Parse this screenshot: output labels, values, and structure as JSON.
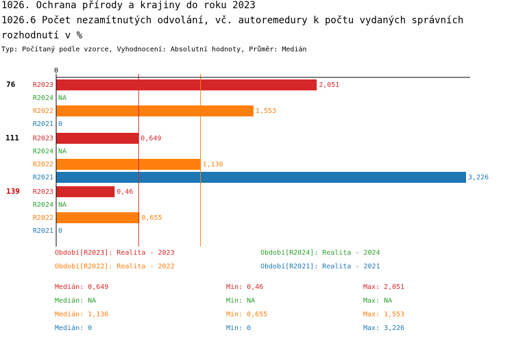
{
  "header": {
    "title_line1": "1026. Ochrana přírody a krajiny do roku 2023",
    "title_line2": "1026.6 Počet nezamítnutých odvolání, vč. autoremedury k počtu vydaných správních",
    "title_line3": "rozhodnutí v %",
    "subtitle": "Typ: Počítaný podle vzorce, Vyhodnocení: Absolutní hodnoty, Průměr: Medián"
  },
  "colors": {
    "R2023": "#d62728",
    "R2024": "#2ca02c",
    "R2022": "#ff7f0e",
    "R2021": "#1f77b4",
    "group_label_default": "#000000",
    "group_label_highlight": "#cc0000"
  },
  "chart_data": {
    "type": "bar",
    "orientation": "horizontal",
    "x_axis_origin_label": "0",
    "xlim": [
      0,
      3.226
    ],
    "series_order": [
      "R2023",
      "R2024",
      "R2022",
      "R2021"
    ],
    "groups": [
      {
        "label": "76",
        "highlight": false,
        "values": {
          "R2023": 2.051,
          "R2024": null,
          "R2022": 1.553,
          "R2021": 0
        },
        "value_labels": {
          "R2023": "2,051",
          "R2024": "NA",
          "R2022": "1,553",
          "R2021": "0"
        }
      },
      {
        "label": "111",
        "highlight": false,
        "values": {
          "R2023": 0.649,
          "R2024": null,
          "R2022": 1.136,
          "R2021": 3.226
        },
        "value_labels": {
          "R2023": "0,649",
          "R2024": "NA",
          "R2022": "1,136",
          "R2021": "3,226"
        }
      },
      {
        "label": "139",
        "highlight": true,
        "values": {
          "R2023": 0.46,
          "R2024": null,
          "R2022": 0.655,
          "R2021": 0
        },
        "value_labels": {
          "R2023": "0,46",
          "R2024": "NA",
          "R2022": "0,655",
          "R2021": "0"
        }
      }
    ],
    "reference_lines": [
      {
        "series": "R2023",
        "value": 0.649
      },
      {
        "series": "R2022",
        "value": 1.136
      }
    ]
  },
  "legend": [
    {
      "key": "R2023",
      "text": "Období[R2023]: Realita - 2023"
    },
    {
      "key": "R2024",
      "text": "Období[R2024]: Realita - 2024"
    },
    {
      "key": "R2022",
      "text": "Období[R2022]: Realita - 2022"
    },
    {
      "key": "R2021",
      "text": "Období[R2021]: Realita - 2021"
    }
  ],
  "stats": [
    {
      "key": "R2023",
      "median": "Medián: 0,649",
      "min": "Min: 0,46",
      "max": "Max: 2,051"
    },
    {
      "key": "R2024",
      "median": "Medián: NA",
      "min": "Min: NA",
      "max": "Max: NA"
    },
    {
      "key": "R2022",
      "median": "Medián: 1,136",
      "min": "Min: 0,655",
      "max": "Max: 1,553"
    },
    {
      "key": "R2021",
      "median": "Medián: 0",
      "min": "Min: 0",
      "max": "Max: 3,226"
    }
  ]
}
